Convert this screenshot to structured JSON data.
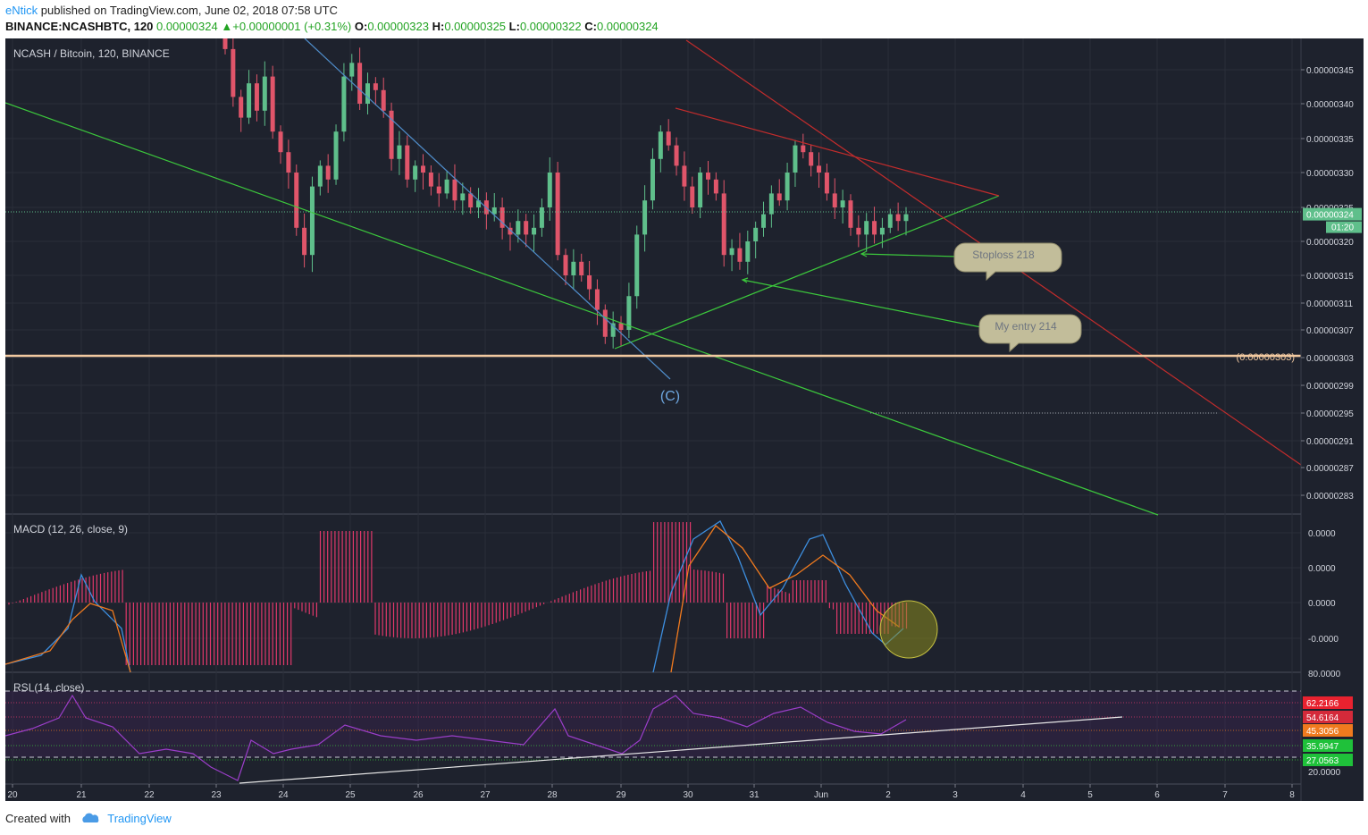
{
  "header": {
    "author": "eNtick",
    "published_text": "published on TradingView.com, June 02, 2018 07:58 UTC",
    "symbol_line": "BINANCE:NCASHBTC, 120",
    "last_price": "0.00000324",
    "change": "+0.00000001 (+0.31%)",
    "open_label": "O:",
    "open": "0.00000323",
    "high_label": "H:",
    "high": "0.00000325",
    "low_label": "L:",
    "low": "0.00000322",
    "close_label": "C:",
    "close": "0.00000324"
  },
  "colors": {
    "background": "#1e222d",
    "bull": "#5fbf8b",
    "bear": "#e0556a",
    "green_line": "#3cc83c",
    "red_line": "#c22c2c",
    "blue_line": "#4f8cc9",
    "support": "#f2c9a0",
    "macd_line": "#3d8fe0",
    "signal_line": "#f07a1e",
    "histogram": "#e0386a",
    "rsi_line": "#9b3ec9"
  },
  "chart_data": [
    {
      "type": "candlestick",
      "title": "NCASH / Bitcoin, 120, BINANCE",
      "y_axis_ticks": [
        "0.00000345",
        "0.00000340",
        "0.00000335",
        "0.00000330",
        "0.00000325",
        "0.00000320",
        "0.00000315",
        "0.00000311",
        "0.00000307",
        "0.00000303",
        "0.00000299",
        "0.00000295",
        "0.00000291",
        "0.00000287",
        "0.00000283"
      ],
      "ylim": [
        2.8e-06,
        3.5e-06
      ],
      "x_axis_ticks": [
        "20",
        "21",
        "22",
        "23",
        "24",
        "25",
        "26",
        "27",
        "28",
        "29",
        "30",
        "31",
        "Jun",
        "2",
        "3",
        "4",
        "5",
        "6",
        "7",
        "8"
      ],
      "price_label": "0.00000324",
      "countdown": "01:20",
      "support_level": 3.03e-06,
      "support_label": "(0.00000303)",
      "callouts": [
        "Stoploss 218",
        "My entry 214"
      ],
      "wave_label": "(C)",
      "closes": [
        3.48e-06,
        3.41e-06,
        3.38e-06,
        3.43e-06,
        3.39e-06,
        3.44e-06,
        3.36e-06,
        3.33e-06,
        3.3e-06,
        3.22e-06,
        3.18e-06,
        3.28e-06,
        3.31e-06,
        3.29e-06,
        3.36e-06,
        3.44e-06,
        3.46e-06,
        3.4e-06,
        3.43e-06,
        3.42e-06,
        3.39e-06,
        3.32e-06,
        3.34e-06,
        3.29e-06,
        3.31e-06,
        3.3e-06,
        3.28e-06,
        3.27e-06,
        3.29e-06,
        3.26e-06,
        3.27e-06,
        3.25e-06,
        3.26e-06,
        3.24e-06,
        3.25e-06,
        3.22e-06,
        3.21e-06,
        3.23e-06,
        3.21e-06,
        3.22e-06,
        3.25e-06,
        3.3e-06,
        3.18e-06,
        3.15e-06,
        3.17e-06,
        3.15e-06,
        3.13e-06,
        3.1e-06,
        3.06e-06,
        3.08e-06,
        3.07e-06,
        3.12e-06,
        3.21e-06,
        3.26e-06,
        3.32e-06,
        3.36e-06,
        3.34e-06,
        3.31e-06,
        3.28e-06,
        3.25e-06,
        3.3e-06,
        3.29e-06,
        3.27e-06,
        3.18e-06,
        3.19e-06,
        3.17e-06,
        3.2e-06,
        3.22e-06,
        3.24e-06,
        3.27e-06,
        3.26e-06,
        3.3e-06,
        3.34e-06,
        3.33e-06,
        3.31e-06,
        3.3e-06,
        3.27e-06,
        3.25e-06,
        3.26e-06,
        3.22e-06,
        3.21e-06,
        3.23e-06,
        3.21e-06,
        3.22e-06,
        3.24e-06,
        3.23e-06,
        3.24e-06
      ],
      "series": [
        {
          "name": "MACD (12, 26, close, 9)",
          "y_axis_ticks": [
            "0.0000",
            "0.0000",
            "0.0000",
            "-0.0000"
          ]
        },
        {
          "name": "RSI (14, close)",
          "y_axis_ticks": [
            "80.0000",
            "20.0000"
          ],
          "value_labels": [
            "62.2166",
            "54.6164",
            "45.3056",
            "35.9947",
            "27.0563"
          ]
        }
      ]
    }
  ],
  "footer": {
    "created_with": "Created with",
    "brand": "TradingView"
  }
}
